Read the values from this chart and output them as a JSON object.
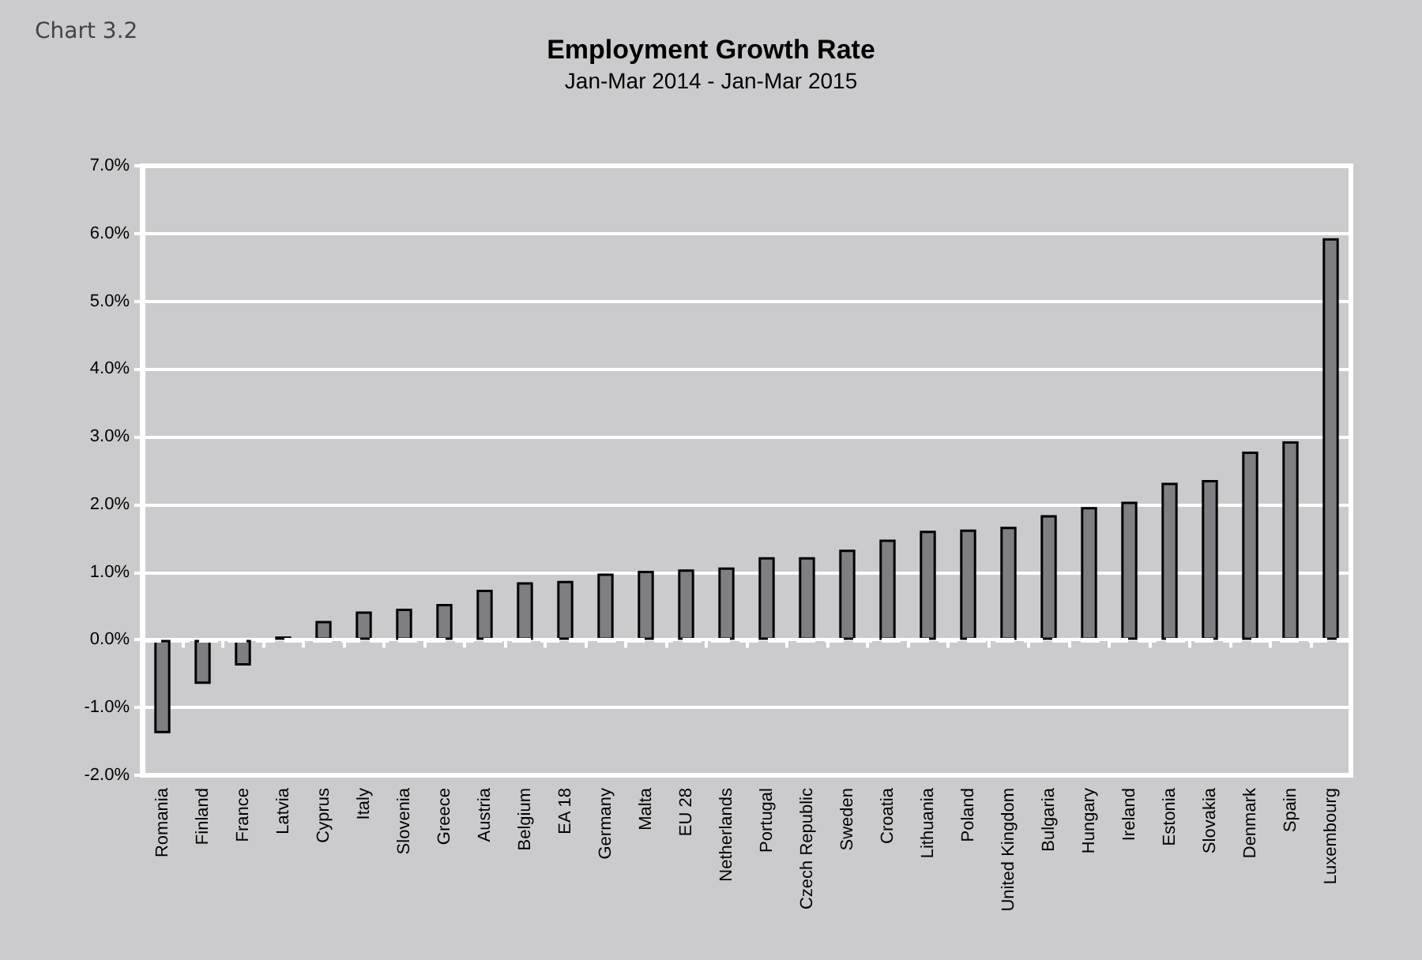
{
  "chart_data": {
    "type": "bar",
    "title": "Employment Growth Rate",
    "subtitle": "Jan-Mar 2014 - Jan-Mar 2015",
    "annotations": [
      "Chart 3.2"
    ],
    "categories": [
      "Romania",
      "Finland",
      "France",
      "Latvia",
      "Cyprus",
      "Italy",
      "Slovenia",
      "Greece",
      "Austria",
      "Belgium",
      "EA 18",
      "Germany",
      "Malta",
      "EU 28",
      "Netherlands",
      "Portugal",
      "Czech Republic",
      "Sweden",
      "Croatia",
      "Lithuania",
      "Poland",
      "United Kingdom",
      "Bulgaria",
      "Hungary",
      "Ireland",
      "Estonia",
      "Slovakia",
      "Denmark",
      "Spain",
      "Luxembourg"
    ],
    "values": [
      -1.38,
      -0.65,
      -0.38,
      0.05,
      0.28,
      0.42,
      0.46,
      0.53,
      0.74,
      0.85,
      0.87,
      0.98,
      1.02,
      1.04,
      1.07,
      1.22,
      1.22,
      1.33,
      1.48,
      1.61,
      1.63,
      1.67,
      1.84,
      1.96,
      2.04,
      2.32,
      2.36,
      2.78,
      2.93,
      5.93
    ],
    "color": "#7f7f83",
    "ylim": [
      -2,
      7
    ],
    "yticks": [
      {
        "value": -2,
        "label": "-2.0%"
      },
      {
        "value": -1,
        "label": "-1.0%"
      },
      {
        "value": 0,
        "label": "0.0%"
      },
      {
        "value": 1,
        "label": "1.0%"
      },
      {
        "value": 2,
        "label": "2.0%"
      },
      {
        "value": 3,
        "label": "3.0%"
      },
      {
        "value": 4,
        "label": "4.0%"
      },
      {
        "value": 5,
        "label": "5.0%"
      },
      {
        "value": 6,
        "label": "6.0%"
      },
      {
        "value": 7,
        "label": "7.0%"
      }
    ],
    "grid": "y",
    "ref_lines": [
      {
        "axis": "y",
        "value": 0,
        "color": "#ffffff",
        "line_style": "dashed"
      }
    ]
  }
}
